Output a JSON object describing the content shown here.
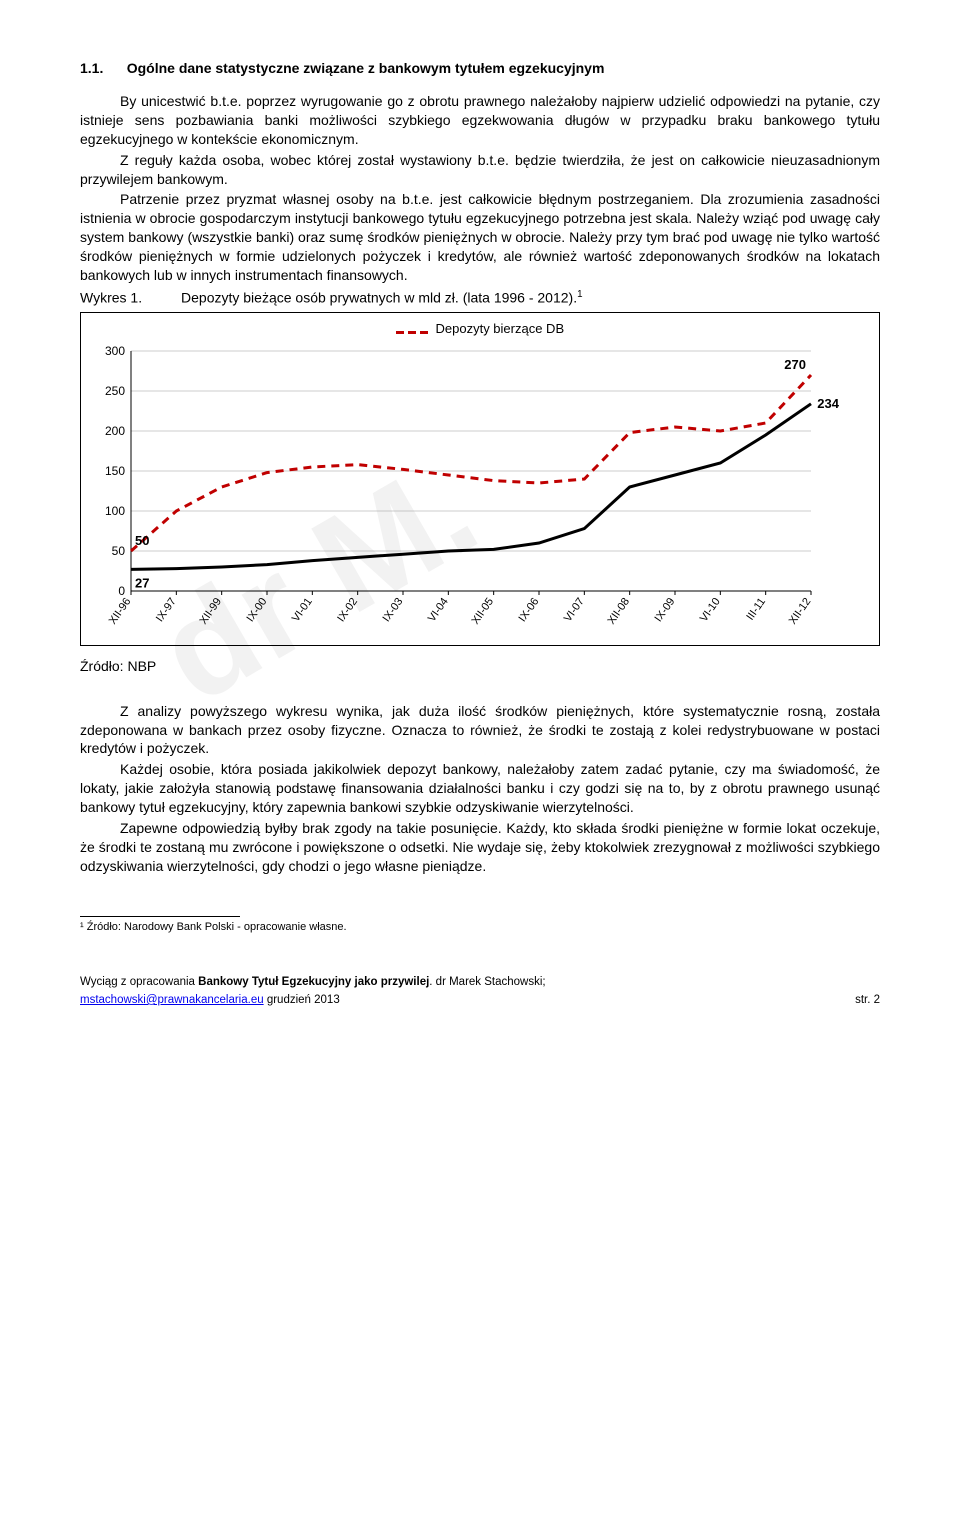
{
  "heading": {
    "number": "1.1.",
    "title": "Ogólne dane statystyczne związane z bankowym tytułem egzekucyjnym"
  },
  "para1": "By unicestwić b.t.e. poprzez wyrugowanie go z obrotu prawnego należałoby najpierw udzielić odpowiedzi na pytanie, czy istnieje sens pozbawiania banki możliwości szybkiego egzekwowania długów w przypadku braku bankowego tytułu egzekucyjnego w kontekście ekonomicznym.",
  "para2": "Z reguły każda osoba, wobec której został wystawiony b.t.e. będzie twierdziła, że jest on całkowicie nieuzasadnionym przywilejem bankowym.",
  "para3": "Patrzenie przez pryzmat własnej osoby na b.t.e. jest całkowicie błędnym postrzeganiem. Dla zrozumienia zasadności istnienia w obrocie gospodarczym instytucji bankowego tytułu egzekucyjnego potrzebna jest skala. Należy wziąć pod uwagę cały system bankowy (wszystkie banki) oraz sumę środków pieniężnych w obrocie. Należy przy tym brać pod uwagę nie tylko wartość środków pieniężnych w formie udzielonych pożyczek i kredytów, ale również wartość zdeponowanych środków na lokatach bankowych lub w innych instrumentach finansowych.",
  "chartTitleLabel": "Wykres 1.",
  "chartTitleText": "Depozyty bieżące osób prywatnych w mld zł. (lata 1996 - 2012).",
  "chartTitleSup": "1",
  "chart": {
    "type": "line",
    "legend_label": "Depozyty bierzące DB",
    "legend_color": "#c00000",
    "x_labels": [
      "XII-96",
      "IX-97",
      "XII-99",
      "IX-00",
      "VI-01",
      "IX-02",
      "IX-03",
      "VI-04",
      "XII-05",
      "IX-06",
      "VI-07",
      "XII-08",
      "IX-09",
      "VI-10",
      "III-11",
      "XII-12"
    ],
    "y_max": 300,
    "y_step": 50,
    "y_ticks": [
      0,
      50,
      100,
      150,
      200,
      250,
      300
    ],
    "series_dashed": {
      "color": "#c00000",
      "width": 3,
      "dash": "8,6",
      "values": [
        50,
        100,
        130,
        148,
        155,
        158,
        152,
        145,
        138,
        135,
        140,
        198,
        205,
        200,
        210,
        270
      ],
      "end_label": "270"
    },
    "series_solid": {
      "color": "#000000",
      "width": 3,
      "values": [
        27,
        28,
        30,
        33,
        38,
        42,
        46,
        50,
        52,
        60,
        78,
        130,
        145,
        160,
        195,
        234
      ],
      "start_label": "27",
      "start_label_bottom": "50",
      "end_label": "234"
    },
    "background": "#ffffff",
    "grid_color": "#999999",
    "axis_color": "#000000",
    "tick_fontsize": 12,
    "label_fontsize": 11
  },
  "source": "Źródło: NBP",
  "para4": "Z analizy powyższego wykresu wynika, jak duża ilość środków pieniężnych, które systematycznie rosną, została zdeponowana w bankach przez osoby fizyczne. Oznacza to również, że środki te zostają z kolei redystrybuowane w postaci kredytów i pożyczek.",
  "para5": "Każdej osobie, która posiada jakikolwiek depozyt bankowy, należałoby zatem zadać pytanie, czy ma świadomość, że lokaty, jakie założyła stanowią podstawę finansowania działalności banku i czy godzi się na to, by z obrotu prawnego usunąć bankowy tytuł egzekucyjny, który zapewnia bankowi szybkie odzyskiwanie wierzytelności.",
  "para6": "Zapewne odpowiedzią byłby brak zgody na takie posunięcie. Każdy, kto składa środki pieniężne w formie lokat oczekuje, że środki te zostaną mu zwrócone i powiększone o odsetki. Nie wydaje się, żeby ktokolwiek zrezygnował z możliwości szybkiego odzyskiwania wierzytelności, gdy chodzi o jego własne pieniądze.",
  "footnote": "¹ Źródło: Narodowy Bank Polski - opracowanie własne.",
  "footer": {
    "line1a": "Wyciąg z opracowania ",
    "line1b": "Bankowy Tytuł Egzekucyjny jako przywilej",
    "line1c": ". dr Marek Stachowski;",
    "email": "mstachowski@prawnakancelaria.eu",
    "date": " grudzień 2013",
    "page": "str. 2"
  }
}
